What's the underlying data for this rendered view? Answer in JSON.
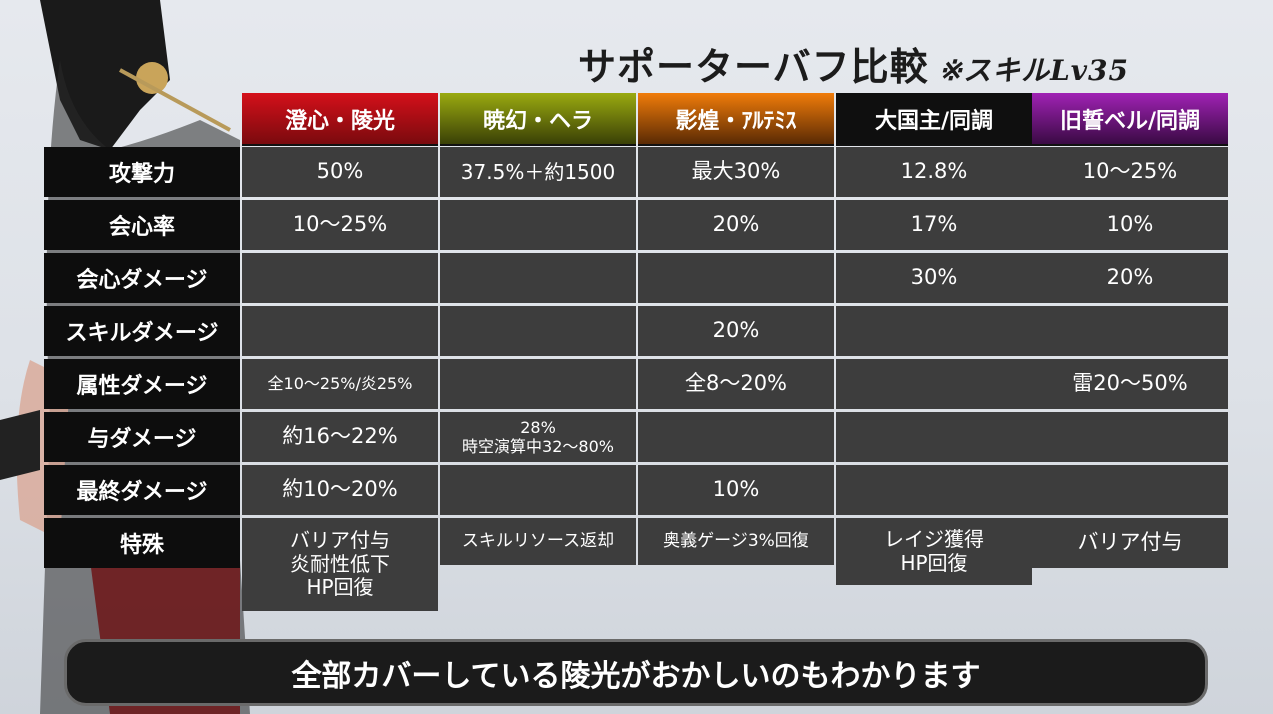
{
  "title": "サポーターバフ比較",
  "title_note": "※スキルLv35",
  "columns": [
    {
      "label": "澄心・陵光",
      "color": "#c0121a"
    },
    {
      "label": "暁幻・ヘラ",
      "color": "#7a8a08"
    },
    {
      "label": "影煌・ｱﾙﾃﾐｽ",
      "color": "#e07808"
    },
    {
      "label": "大国主/同調",
      "color": "#111111"
    },
    {
      "label": "旧誓ベル/同調",
      "color": "#8a1a9a"
    }
  ],
  "rows": [
    {
      "label": "攻撃力",
      "cells": [
        "50%",
        "37.5%＋約1500",
        "最大30%",
        "12.8%",
        "10～25%"
      ]
    },
    {
      "label": "会心率",
      "cells": [
        "10～25%",
        "",
        "20%",
        "17%",
        "10%"
      ]
    },
    {
      "label": "会心ダメージ",
      "cells": [
        "",
        "",
        "",
        "30%",
        "20%"
      ]
    },
    {
      "label": "スキルダメージ",
      "cells": [
        "",
        "",
        "20%",
        "",
        ""
      ]
    },
    {
      "label": "属性ダメージ",
      "cells": [
        "全10～25%/炎25%",
        "",
        "全8～20%",
        "",
        "雷20～50%"
      ]
    },
    {
      "label": "与ダメージ",
      "cells": [
        "約16～22%",
        "28%",
        "",
        "",
        ""
      ],
      "cell_line2": {
        "1": "時空演算中32～80%"
      }
    },
    {
      "label": "最終ダメージ",
      "cells": [
        "約10～20%",
        "",
        "10%",
        "",
        ""
      ]
    }
  ],
  "special": {
    "label": "特殊",
    "cells": [
      [
        "バリア付与",
        "炎耐性低下",
        "HP回復"
      ],
      [
        "スキルリソース返却"
      ],
      [
        "奥義ゲージ3%回復"
      ],
      [
        "レイジ獲得",
        "HP回復"
      ],
      [
        "バリア付与"
      ]
    ]
  },
  "subtitle": "全部カバーしている陵光がおかしいのもわかります"
}
